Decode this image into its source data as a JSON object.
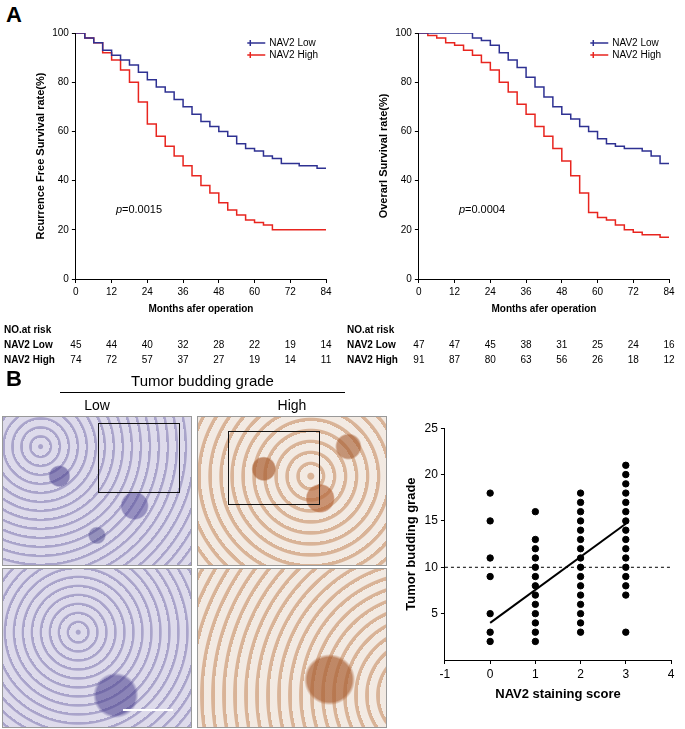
{
  "figure": {
    "panel_labels": [
      "A",
      "B"
    ],
    "image_panel": {
      "title": "Tumor budding grade",
      "columns": [
        "Low",
        "High"
      ]
    }
  },
  "chart_data": [
    {
      "type": "step",
      "x_label": "Months afer operation",
      "y_label": "Rcurrence Free Survival rate(%)",
      "x": [
        0,
        3,
        6,
        9,
        12,
        15,
        18,
        21,
        24,
        27,
        30,
        33,
        36,
        39,
        42,
        45,
        48,
        51,
        54,
        57,
        60,
        63,
        66,
        69,
        72,
        75,
        78,
        81,
        84
      ],
      "series": [
        {
          "name": "NAV2 Low",
          "color": "#2e3192",
          "values": [
            100,
            100,
            98,
            96,
            93,
            91,
            89,
            87,
            84,
            81,
            78,
            76,
            73,
            70,
            67,
            64,
            62,
            60,
            58,
            55,
            53,
            52,
            50,
            49,
            47,
            47,
            46,
            46,
            45
          ]
        },
        {
          "name": "NAV2 High",
          "color": "#e8251f",
          "values": [
            100,
            100,
            98,
            96,
            92,
            89,
            85,
            80,
            72,
            63,
            58,
            54,
            50,
            46,
            42,
            38,
            35,
            31,
            28,
            26,
            24,
            23,
            22,
            20,
            20,
            20,
            20,
            20,
            20
          ]
        }
      ],
      "xlim": [
        0,
        84
      ],
      "xticks": [
        0,
        12,
        24,
        36,
        48,
        60,
        72,
        84
      ],
      "ylim": [
        0,
        100
      ],
      "yticks": [
        0,
        20,
        40,
        60,
        80,
        100
      ],
      "legend": "upper right",
      "annotation": "p=0.0015",
      "risk_table": {
        "title": "NO.at risk",
        "times": [
          0,
          12,
          24,
          36,
          48,
          60,
          72,
          84
        ],
        "rows": [
          {
            "name": "NAV2 Low",
            "values": [
              45,
              44,
              40,
              32,
              28,
              22,
              19,
              14
            ]
          },
          {
            "name": "NAV2 High",
            "values": [
              74,
              72,
              57,
              37,
              27,
              19,
              14,
              11
            ]
          }
        ]
      }
    },
    {
      "type": "step",
      "x_label": "Months afer operation",
      "y_label": "Overarl Survival rate(%)",
      "x": [
        0,
        3,
        6,
        9,
        12,
        15,
        18,
        21,
        24,
        27,
        30,
        33,
        36,
        39,
        42,
        45,
        48,
        51,
        54,
        57,
        60,
        63,
        66,
        69,
        72,
        75,
        78,
        81,
        84
      ],
      "series": [
        {
          "name": "NAV2 Low",
          "color": "#2e3192",
          "values": [
            100,
            100,
            100,
            100,
            100,
            100,
            100,
            98,
            97,
            95,
            92,
            89,
            86,
            82,
            78,
            74,
            70,
            67,
            65,
            62,
            60,
            57,
            55,
            54,
            53,
            53,
            52,
            50,
            47
          ]
        },
        {
          "name": "NAV2 High",
          "color": "#e8251f",
          "values": [
            100,
            100,
            99,
            98,
            96,
            95,
            93,
            91,
            88,
            85,
            80,
            76,
            71,
            67,
            62,
            58,
            53,
            48,
            42,
            35,
            27,
            25,
            24,
            22,
            20,
            19,
            18,
            18,
            17
          ]
        }
      ],
      "xlim": [
        0,
        84
      ],
      "xticks": [
        0,
        12,
        24,
        36,
        48,
        60,
        72,
        84
      ],
      "ylim": [
        0,
        100
      ],
      "yticks": [
        0,
        20,
        40,
        60,
        80,
        100
      ],
      "legend": "upper right",
      "annotation": "p=0.0004",
      "risk_table": {
        "title": "NO.at risk",
        "times": [
          0,
          12,
          24,
          36,
          48,
          60,
          72,
          84
        ],
        "rows": [
          {
            "name": "NAV2 Low",
            "values": [
              47,
              47,
              45,
              38,
              31,
              25,
              24,
              16
            ]
          },
          {
            "name": "NAV2 High",
            "values": [
              91,
              87,
              80,
              63,
              56,
              26,
              18,
              12
            ]
          }
        ]
      }
    },
    {
      "type": "scatter",
      "x_label": "NAV2 staining score",
      "y_label": "Tumor budding grade",
      "xlim": [
        -1,
        4
      ],
      "xticks": [
        -1,
        0,
        1,
        2,
        3,
        4
      ],
      "ylim": [
        0,
        25
      ],
      "yticks": [
        5,
        10,
        15,
        20,
        25
      ],
      "series": [
        {
          "type": "scatter",
          "color": "#000000",
          "marker": "circle",
          "x": [
            0,
            0,
            0,
            0,
            0,
            0,
            0,
            1,
            1,
            1,
            1,
            1,
            1,
            1,
            1,
            1,
            1,
            1,
            1,
            1,
            2,
            2,
            2,
            2,
            2,
            2,
            2,
            2,
            2,
            2,
            2,
            2,
            2,
            2,
            2,
            2,
            3,
            3,
            3,
            3,
            3,
            3,
            3,
            3,
            3,
            3,
            3,
            3,
            3,
            3,
            3,
            3
          ],
          "values": [
            18,
            15,
            11,
            9,
            5,
            3,
            2,
            16,
            13,
            12,
            11,
            10,
            9,
            8,
            7,
            6,
            5,
            4,
            3,
            2,
            18,
            17,
            16,
            15,
            14,
            13,
            12,
            11,
            10,
            9,
            8,
            7,
            6,
            5,
            4,
            3,
            21,
            20,
            19,
            18,
            17,
            16,
            15,
            14,
            13,
            12,
            11,
            10,
            9,
            8,
            7,
            3
          ]
        },
        {
          "type": "line",
          "color": "#000000",
          "line_style": "solid",
          "x": [
            0,
            3
          ],
          "values": [
            4,
            14.7
          ]
        }
      ],
      "reference_line": {
        "y": 10,
        "line_style": "dashed"
      }
    }
  ]
}
